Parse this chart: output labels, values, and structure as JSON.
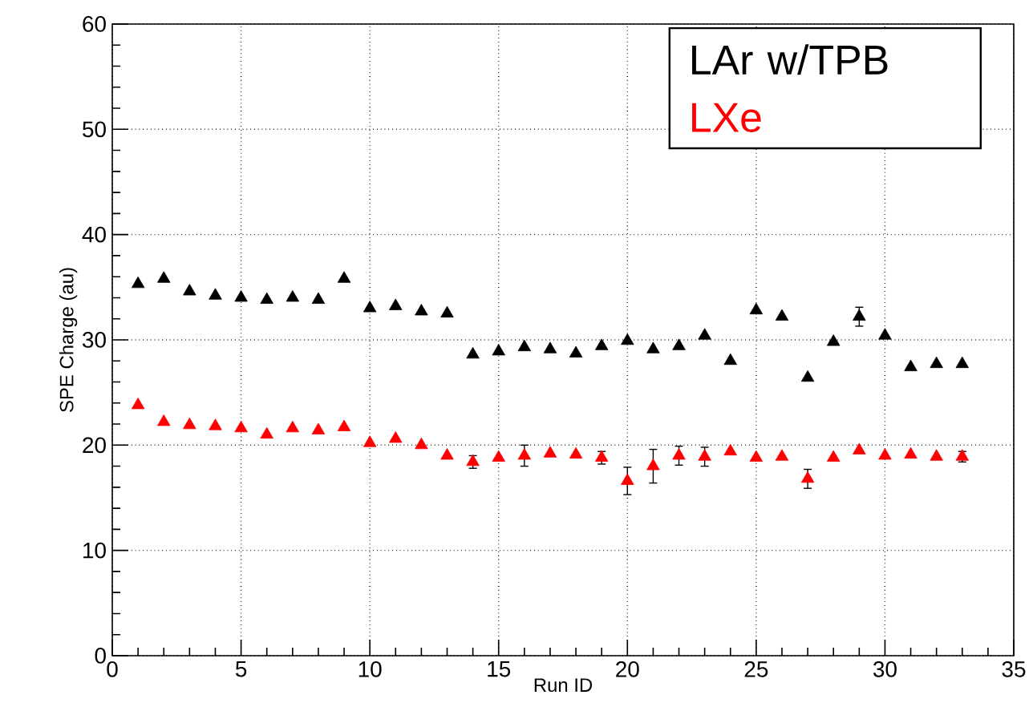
{
  "chart_data": {
    "type": "scatter",
    "xlabel": "Run ID",
    "ylabel": "SPE Charge (au)",
    "x": [
      1,
      2,
      3,
      4,
      5,
      6,
      7,
      8,
      9,
      10,
      11,
      12,
      13,
      14,
      15,
      16,
      17,
      18,
      19,
      20,
      21,
      22,
      23,
      24,
      25,
      26,
      27,
      28,
      29,
      30,
      31,
      32,
      33
    ],
    "series": [
      {
        "name": "LAr w/TPB",
        "color": "#000000",
        "values": [
          35.3,
          35.8,
          34.6,
          34.2,
          34.0,
          33.8,
          34.0,
          33.8,
          35.8,
          33.0,
          33.2,
          32.7,
          32.5,
          28.6,
          28.9,
          29.3,
          29.1,
          28.7,
          29.4,
          29.9,
          29.1,
          29.4,
          30.4,
          28.0,
          32.8,
          32.2,
          26.4,
          29.8,
          32.2,
          30.4,
          27.4,
          27.7,
          27.7
        ],
        "errors": [
          null,
          null,
          null,
          null,
          null,
          null,
          null,
          null,
          null,
          null,
          null,
          null,
          null,
          null,
          null,
          null,
          null,
          null,
          null,
          null,
          null,
          null,
          null,
          null,
          null,
          null,
          null,
          null,
          0.9,
          null,
          null,
          null,
          null
        ]
      },
      {
        "name": "LXe",
        "color": "#ff0000",
        "values": [
          23.8,
          22.2,
          21.9,
          21.8,
          21.6,
          21.0,
          21.6,
          21.4,
          21.7,
          20.2,
          20.6,
          20.0,
          19.0,
          18.4,
          18.8,
          19.0,
          19.2,
          19.1,
          18.8,
          16.6,
          18.0,
          19.0,
          18.9,
          19.4,
          18.8,
          18.9,
          16.8,
          18.8,
          19.5,
          19.0,
          19.1,
          18.9,
          18.9
        ],
        "errors": [
          null,
          null,
          null,
          null,
          null,
          null,
          null,
          null,
          null,
          null,
          null,
          null,
          null,
          0.6,
          null,
          1.0,
          null,
          null,
          0.6,
          1.3,
          1.6,
          0.9,
          0.9,
          null,
          null,
          null,
          0.9,
          null,
          null,
          null,
          null,
          null,
          0.5
        ]
      }
    ],
    "xlim": [
      0,
      35
    ],
    "xticks": [
      0,
      5,
      10,
      15,
      20,
      25,
      30,
      35
    ],
    "ylim": [
      0,
      60
    ],
    "yticks": [
      0,
      10,
      20,
      30,
      40,
      50,
      60
    ],
    "grid": true,
    "legend": "top right",
    "marker": "triangle"
  }
}
